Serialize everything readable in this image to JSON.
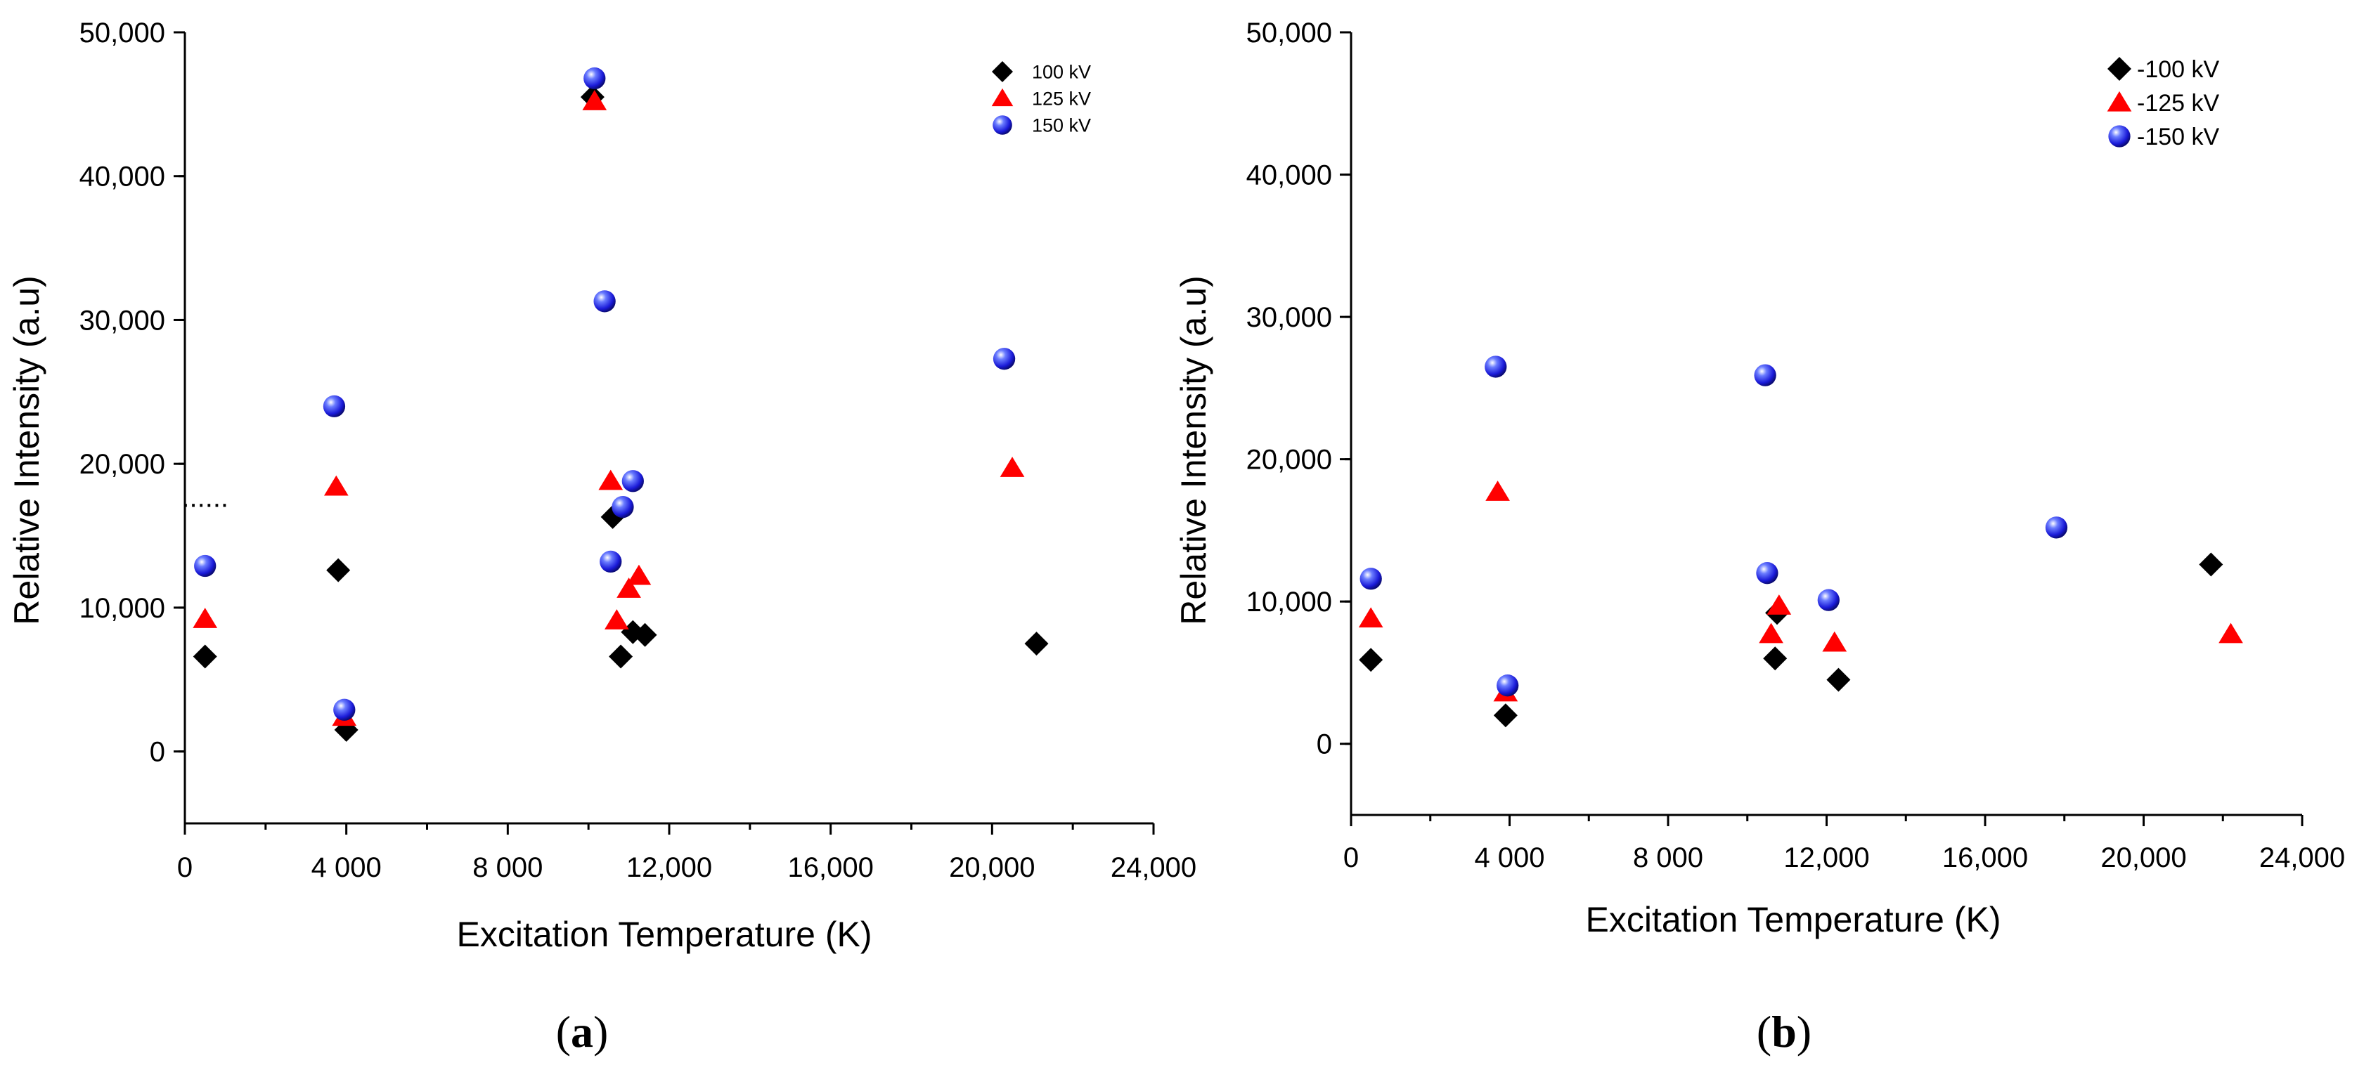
{
  "chart_data": [
    {
      "type": "scatter",
      "panel_label": "(a)",
      "panel_letter": "a",
      "xlabel": "Excitation Temperature (K)",
      "ylabel": "Relative Intensity (a.u)",
      "xlim": [
        0,
        24000
      ],
      "ylim": [
        -5000,
        50000
      ],
      "x_ticks": [
        0,
        4000,
        8000,
        12000,
        16000,
        20000,
        24000
      ],
      "x_tick_labels": [
        "0",
        "4 000",
        "8 000",
        "12,000",
        "16,000",
        "20,000",
        "24,000"
      ],
      "y_ticks": [
        0,
        10000,
        20000,
        30000,
        40000,
        50000
      ],
      "y_tick_labels": [
        "0",
        "10,000",
        "20,000",
        "30,000",
        "40,000",
        "50,000"
      ],
      "legend_position": "top-right",
      "annotation": {
        "text": "......",
        "x": 500,
        "y": 17000
      },
      "series": [
        {
          "name": "100 kV",
          "marker": "diamond",
          "color": "#000000",
          "points": [
            [
              500,
              6600
            ],
            [
              3800,
              12600
            ],
            [
              4000,
              1500
            ],
            [
              10100,
              45500
            ],
            [
              10600,
              16300
            ],
            [
              10800,
              6600
            ],
            [
              11100,
              8300
            ],
            [
              11400,
              8100
            ],
            [
              21100,
              7500
            ]
          ]
        },
        {
          "name": "125 kV",
          "marker": "triangle",
          "color": "#ff0000",
          "points": [
            [
              500,
              9200
            ],
            [
              3750,
              18400
            ],
            [
              3950,
              2400
            ],
            [
              10150,
              45200
            ],
            [
              10550,
              18800
            ],
            [
              10700,
              9100
            ],
            [
              11000,
              11300
            ],
            [
              11250,
              12200
            ],
            [
              20500,
              19700
            ]
          ]
        },
        {
          "name": "150 kV",
          "marker": "sphere",
          "color": "#1515d8",
          "points": [
            [
              500,
              12900
            ],
            [
              3700,
              24000
            ],
            [
              3950,
              2900
            ],
            [
              10150,
              46800
            ],
            [
              10400,
              31300
            ],
            [
              10550,
              13200
            ],
            [
              10850,
              17000
            ],
            [
              11100,
              18800
            ],
            [
              20300,
              27300
            ]
          ]
        }
      ]
    },
    {
      "type": "scatter",
      "panel_label": "(b)",
      "panel_letter": "b",
      "xlabel": "Excitation Temperature (K)",
      "ylabel": "Relative Intensity (a.u)",
      "xlim": [
        0,
        24000
      ],
      "ylim": [
        -5000,
        50000
      ],
      "x_ticks": [
        0,
        4000,
        8000,
        12000,
        16000,
        20000,
        24000
      ],
      "x_tick_labels": [
        "0",
        "4 000",
        "8 000",
        "12,000",
        "16,000",
        "20,000",
        "24,000"
      ],
      "y_ticks": [
        0,
        10000,
        20000,
        30000,
        40000,
        50000
      ],
      "y_tick_labels": [
        "0",
        "10,000",
        "20,000",
        "30,000",
        "40,000",
        "50,000"
      ],
      "legend_position": "top-right",
      "series": [
        {
          "name": "-100 kV",
          "marker": "diamond",
          "color": "#000000",
          "points": [
            [
              500,
              5900
            ],
            [
              3900,
              2000
            ],
            [
              10700,
              6000
            ],
            [
              10750,
              9200
            ],
            [
              12300,
              4500
            ],
            [
              21700,
              12600
            ]
          ]
        },
        {
          "name": "-125 kV",
          "marker": "triangle",
          "color": "#ff0000",
          "points": [
            [
              500,
              8800
            ],
            [
              3700,
              17700
            ],
            [
              3900,
              3600
            ],
            [
              10600,
              7700
            ],
            [
              10800,
              9700
            ],
            [
              12200,
              7100
            ],
            [
              22200,
              7700
            ]
          ]
        },
        {
          "name": "-150 kV",
          "marker": "sphere",
          "color": "#1515d8",
          "points": [
            [
              500,
              11600
            ],
            [
              3650,
              26500
            ],
            [
              3950,
              4100
            ],
            [
              10450,
              25900
            ],
            [
              10500,
              12000
            ],
            [
              12050,
              10100
            ],
            [
              17800,
              15200
            ]
          ]
        }
      ]
    }
  ]
}
